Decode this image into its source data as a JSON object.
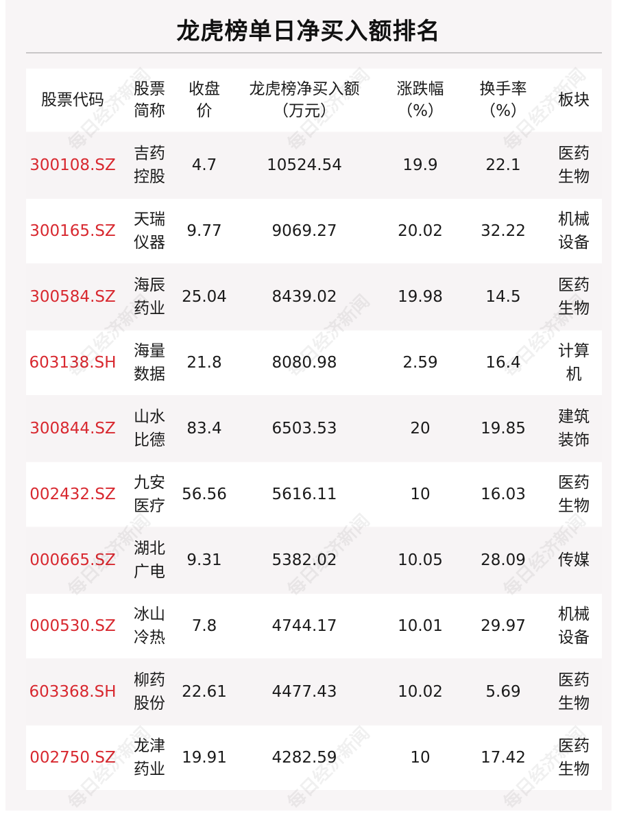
{
  "title": "龙虎榜单日净买入额排名",
  "watermark": "每日经济新闻",
  "colors": {
    "code": "#d8282f",
    "background": "#f8f5f6"
  },
  "table": {
    "headers": [
      [
        "股票代码"
      ],
      [
        "股票",
        "简称"
      ],
      [
        "收盘",
        "价"
      ],
      [
        "龙虎榜净买入额",
        "（万元）"
      ],
      [
        "涨跌幅",
        "（%）"
      ],
      [
        "换手率",
        "（%）"
      ],
      [
        "板块"
      ]
    ],
    "rows": [
      [
        "300108.SZ",
        "吉药控股",
        "4.7",
        "10524.54",
        "19.9",
        "22.1",
        "医药生物"
      ],
      [
        "300165.SZ",
        "天瑞仪器",
        "9.77",
        "9069.27",
        "20.02",
        "32.22",
        "机械设备"
      ],
      [
        "300584.SZ",
        "海辰药业",
        "25.04",
        "8439.02",
        "19.98",
        "14.5",
        "医药生物"
      ],
      [
        "603138.SH",
        "海量数据",
        "21.8",
        "8080.98",
        "2.59",
        "16.4",
        "计算机"
      ],
      [
        "300844.SZ",
        "山水比德",
        "83.4",
        "6503.53",
        "20",
        "19.85",
        "建筑装饰"
      ],
      [
        "002432.SZ",
        "九安医疗",
        "56.56",
        "5616.11",
        "10",
        "16.03",
        "医药生物"
      ],
      [
        "000665.SZ",
        "湖北广电",
        "9.31",
        "5382.02",
        "10.05",
        "28.09",
        "传媒"
      ],
      [
        "000530.SZ",
        "冰山冷热",
        "7.8",
        "4744.17",
        "10.01",
        "29.97",
        "机械设备"
      ],
      [
        "603368.SH",
        "柳药股份",
        "22.61",
        "4477.43",
        "10.02",
        "5.69",
        "医药生物"
      ],
      [
        "002750.SZ",
        "龙津药业",
        "19.91",
        "4282.59",
        "10",
        "17.42",
        "医药生物"
      ]
    ]
  }
}
